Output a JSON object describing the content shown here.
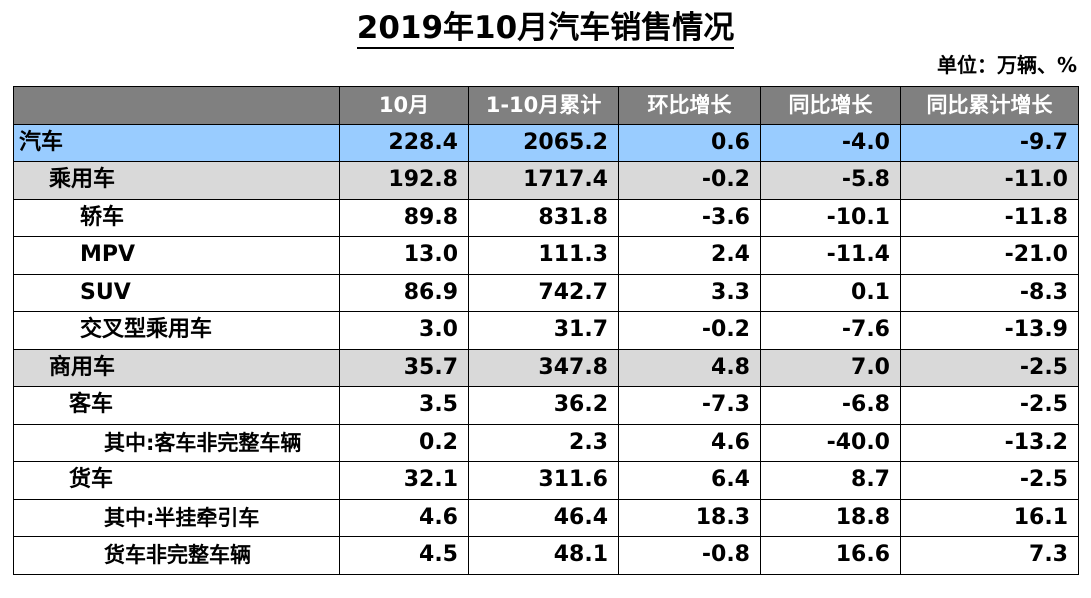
{
  "title": "2019年10月汽车销售情况",
  "unit": "单位：万辆、%",
  "table": {
    "headers": [
      "",
      "10月",
      "1-10月累计",
      "环比增长",
      "同比增长",
      "同比累计增长"
    ],
    "rows": [
      {
        "label": "汽车",
        "values": [
          "228.4",
          "2065.2",
          "0.6",
          "-4.0",
          "-9.7"
        ]
      },
      {
        "label": "乘用车",
        "values": [
          "192.8",
          "1717.4",
          "-0.2",
          "-5.8",
          "-11.0"
        ]
      },
      {
        "label": "轿车",
        "values": [
          "89.8",
          "831.8",
          "-3.6",
          "-10.1",
          "-11.8"
        ]
      },
      {
        "label": "MPV",
        "values": [
          "13.0",
          "111.3",
          "2.4",
          "-11.4",
          "-21.0"
        ]
      },
      {
        "label": "SUV",
        "values": [
          "86.9",
          "742.7",
          "3.3",
          "0.1",
          "-8.3"
        ]
      },
      {
        "label": "交叉型乘用车",
        "values": [
          "3.0",
          "31.7",
          "-0.2",
          "-7.6",
          "-13.9"
        ]
      },
      {
        "label": "商用车",
        "values": [
          "35.7",
          "347.8",
          "4.8",
          "7.0",
          "-2.5"
        ]
      },
      {
        "label": "客车",
        "values": [
          "3.5",
          "36.2",
          "-7.3",
          "-6.8",
          "-2.5"
        ]
      },
      {
        "label": "其中:客车非完整车辆",
        "values": [
          "0.2",
          "2.3",
          "4.6",
          "-40.0",
          "-13.2"
        ]
      },
      {
        "label": "货车",
        "values": [
          "32.1",
          "311.6",
          "6.4",
          "8.7",
          "-2.5"
        ]
      },
      {
        "label": "其中:半挂牵引车",
        "values": [
          "4.6",
          "46.4",
          "18.3",
          "18.8",
          "16.1"
        ]
      },
      {
        "label": "货车非完整车辆",
        "values": [
          "4.5",
          "48.1",
          "-0.8",
          "16.6",
          "7.3"
        ]
      }
    ]
  }
}
